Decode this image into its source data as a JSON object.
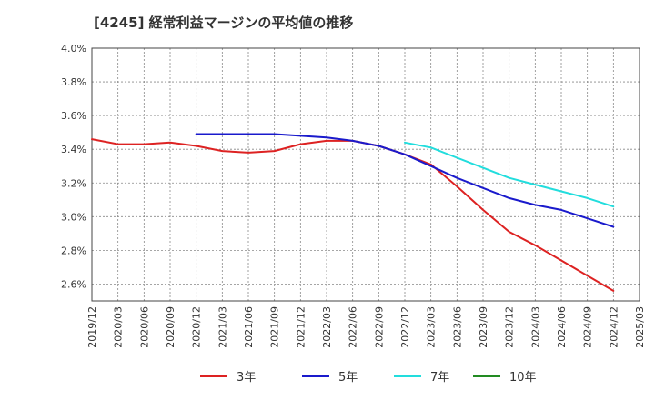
{
  "chart_data": {
    "type": "line",
    "title": "[4245]  経常利益マージンの平均値の推移",
    "xlabel": "",
    "ylabel": "",
    "x_ticks": [
      "2019/12",
      "2020/03",
      "2020/06",
      "2020/09",
      "2020/12",
      "2021/03",
      "2021/06",
      "2021/09",
      "2021/12",
      "2022/03",
      "2022/06",
      "2022/09",
      "2022/12",
      "2023/03",
      "2023/06",
      "2023/09",
      "2023/12",
      "2024/03",
      "2024/06",
      "2024/09",
      "2024/12",
      "2025/03"
    ],
    "y_ticks": [
      "2.6%",
      "2.8%",
      "3.0%",
      "3.2%",
      "3.4%",
      "3.6%",
      "3.8%",
      "4.0%"
    ],
    "ylim": [
      2.5,
      4.0
    ],
    "y_unit": "%",
    "grid": true,
    "legend_position": "bottom",
    "colors": {
      "3年": "#dd2222",
      "5年": "#1a1acc",
      "7年": "#22dddd",
      "10年": "#228b22"
    },
    "series": [
      {
        "name": "3年",
        "color": "#dd2222",
        "x": [
          "2019/12",
          "2020/03",
          "2020/06",
          "2020/09",
          "2020/12",
          "2021/03",
          "2021/06",
          "2021/09",
          "2021/12",
          "2022/03",
          "2022/06",
          "2022/09",
          "2022/12",
          "2023/03",
          "2023/06",
          "2023/09",
          "2023/12",
          "2024/03",
          "2024/06",
          "2024/09",
          "2024/12"
        ],
        "values": [
          3.46,
          3.43,
          3.43,
          3.44,
          3.42,
          3.39,
          3.38,
          3.39,
          3.43,
          3.45,
          3.45,
          3.42,
          3.37,
          3.31,
          3.18,
          3.04,
          2.91,
          2.83,
          2.74,
          2.65,
          2.56
        ]
      },
      {
        "name": "5年",
        "color": "#1a1acc",
        "x": [
          "2020/12",
          "2021/03",
          "2021/06",
          "2021/09",
          "2021/12",
          "2022/03",
          "2022/06",
          "2022/09",
          "2022/12",
          "2023/03",
          "2023/06",
          "2023/09",
          "2023/12",
          "2024/03",
          "2024/06",
          "2024/09",
          "2024/12"
        ],
        "values": [
          3.49,
          3.49,
          3.49,
          3.49,
          3.48,
          3.47,
          3.45,
          3.42,
          3.37,
          3.3,
          3.23,
          3.17,
          3.11,
          3.07,
          3.04,
          2.99,
          2.94
        ]
      },
      {
        "name": "7年",
        "color": "#22dddd",
        "x": [
          "2022/12",
          "2023/03",
          "2023/06",
          "2023/09",
          "2023/12",
          "2024/03",
          "2024/06",
          "2024/09",
          "2024/12"
        ],
        "values": [
          3.44,
          3.41,
          3.35,
          3.29,
          3.23,
          3.19,
          3.15,
          3.11,
          3.06
        ]
      },
      {
        "name": "10年",
        "color": "#228b22",
        "x": [],
        "values": []
      }
    ]
  }
}
